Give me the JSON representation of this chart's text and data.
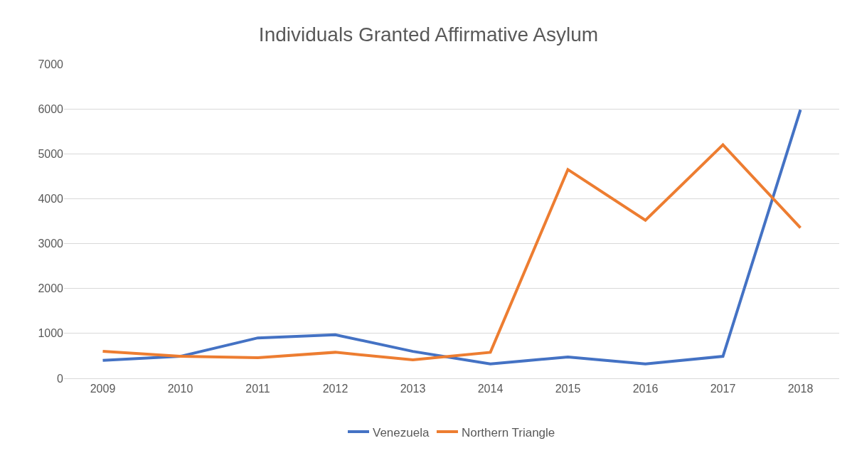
{
  "chart_data": {
    "type": "line",
    "title": "Individuals Granted Affirmative Asylum",
    "categories": [
      "2009",
      "2010",
      "2011",
      "2012",
      "2013",
      "2014",
      "2015",
      "2016",
      "2017",
      "2018"
    ],
    "series": [
      {
        "name": "Venezuela",
        "color": "#4472c4",
        "values": [
          400,
          490,
          900,
          970,
          600,
          320,
          475,
          320,
          490,
          5980
        ]
      },
      {
        "name": "Northern Triangle",
        "color": "#ed7d31",
        "values": [
          600,
          490,
          460,
          580,
          410,
          580,
          4650,
          3520,
          5200,
          3350
        ]
      }
    ],
    "ylim": [
      0,
      7000
    ],
    "yticks": [
      0,
      1000,
      2000,
      3000,
      4000,
      5000,
      6000,
      7000
    ],
    "grid": "y",
    "legend": "bottom",
    "marker": "none",
    "line_style": "solid"
  }
}
